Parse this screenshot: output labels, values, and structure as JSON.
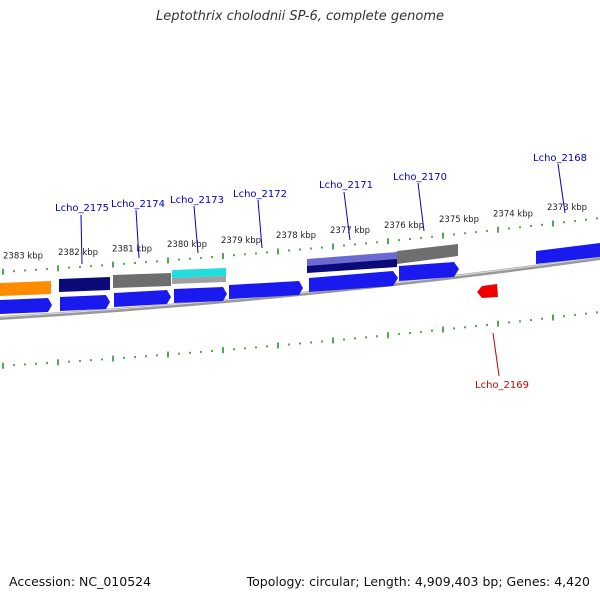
{
  "title": "Leptothrix cholodnii SP-6, complete genome",
  "footer": {
    "accession": "Accession: NC_010524",
    "stats": "Topology: circular; Length: 4,909,403 bp; Genes: 4,420"
  },
  "colors": {
    "backbone": "#8a8a8a",
    "tick": "#1a8a1a",
    "label_blue": "#0000cc",
    "label_red": "#cc0000",
    "cds": "#1a1aee",
    "orange": "#ff8c00",
    "navy": "#0a0a78",
    "gray": "#6e6e6e",
    "cyan": "#22dddd",
    "slate": "#6a6ad0",
    "red": "#ee0000"
  },
  "kbp_labels": [
    "2383 kbp",
    "2382 kbp",
    "2381 kbp",
    "2380 kbp",
    "2379 kbp",
    "2378 kbp",
    "2377 kbp",
    "2376 kbp",
    "2375 kbp",
    "2374 kbp",
    "2373 kbp"
  ],
  "gene_labels": [
    {
      "name": "Lcho_2175",
      "color": "blue"
    },
    {
      "name": "Lcho_2174",
      "color": "blue"
    },
    {
      "name": "Lcho_2173",
      "color": "blue"
    },
    {
      "name": "Lcho_2172",
      "color": "blue"
    },
    {
      "name": "Lcho_2171",
      "color": "blue"
    },
    {
      "name": "Lcho_2170",
      "color": "blue"
    },
    {
      "name": "Lcho_2168",
      "color": "blue"
    },
    {
      "name": "Lcho_2169",
      "color": "red"
    }
  ]
}
